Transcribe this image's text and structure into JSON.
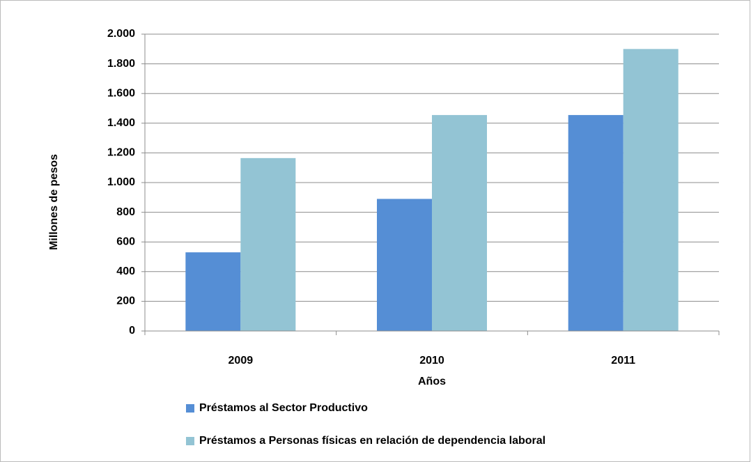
{
  "chart_data": {
    "type": "bar",
    "categories": [
      "2009",
      "2010",
      "2011"
    ],
    "series": [
      {
        "name": "Préstamos al Sector Productivo",
        "color": "#558ed5",
        "values": [
          530,
          890,
          1455
        ]
      },
      {
        "name": "Préstamos a Personas físicas en relación de dependencia laboral",
        "color": "#93c4d4",
        "values": [
          1165,
          1455,
          1900
        ]
      }
    ],
    "xlabel": "Años",
    "ylabel": "Millones de pesos",
    "ylim": [
      0,
      2000
    ],
    "yticks": [
      0,
      200,
      400,
      600,
      800,
      {
        "value": 1000,
        "label": "1.000"
      },
      {
        "value": 1200,
        "label": "1.200"
      },
      {
        "value": 1400,
        "label": "1.400"
      },
      {
        "value": 1600,
        "label": "1.600"
      },
      {
        "value": 1800,
        "label": "1.800"
      },
      {
        "value": 2000,
        "label": "2.000"
      }
    ],
    "grid": true
  }
}
